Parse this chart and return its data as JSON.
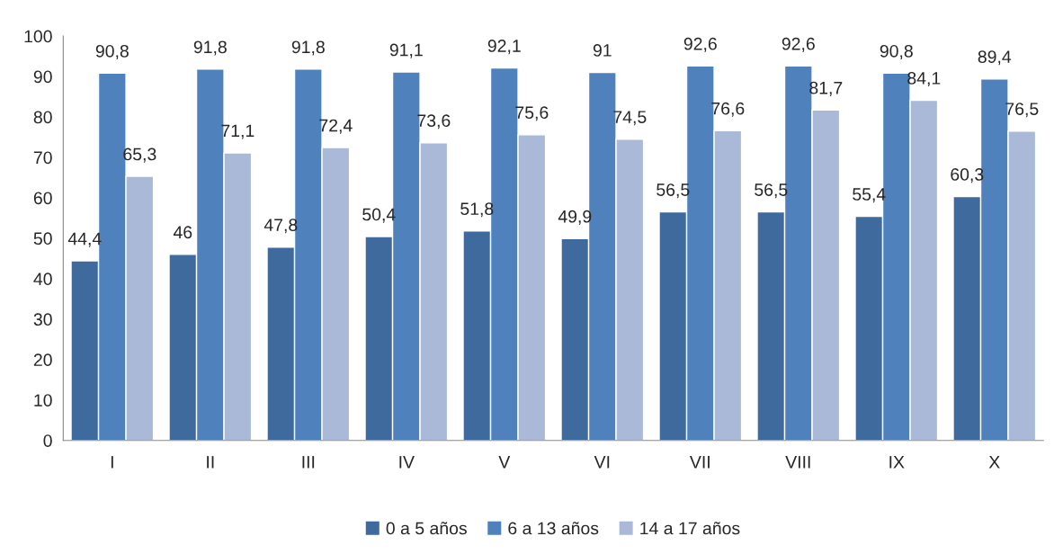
{
  "chart_data": {
    "type": "bar",
    "categories": [
      "I",
      "II",
      "III",
      "IV",
      "V",
      "VI",
      "VII",
      "VIII",
      "IX",
      "X"
    ],
    "series": [
      {
        "name": "0 a 5 años",
        "color": "#3f6a9e",
        "values": [
          44.4,
          46,
          47.8,
          50.4,
          51.8,
          49.9,
          56.5,
          56.5,
          55.4,
          60.3
        ],
        "value_labels": [
          "44,4",
          "46",
          "47,8",
          "50,4",
          "51,8",
          "49,9",
          "56,5",
          "56,5",
          "55,4",
          "60,3"
        ]
      },
      {
        "name": "6 a 13 años",
        "color": "#4f81bd",
        "values": [
          90.8,
          91.8,
          91.8,
          91.1,
          92.1,
          91,
          92.6,
          92.6,
          90.8,
          89.4
        ],
        "value_labels": [
          "90,8",
          "91,8",
          "91,8",
          "91,1",
          "92,1",
          "91",
          "92,6",
          "92,6",
          "90,8",
          "89,4"
        ]
      },
      {
        "name": "14 a 17 años",
        "color": "#aab9d8",
        "values": [
          65.3,
          71.1,
          72.4,
          73.6,
          75.6,
          74.5,
          76.6,
          81.7,
          84.1,
          76.5
        ],
        "value_labels": [
          "65,3",
          "71,1",
          "72,4",
          "73,6",
          "75,6",
          "74,5",
          "76,6",
          "81,7",
          "84,1",
          "76,5"
        ]
      }
    ],
    "ylim": [
      0,
      100
    ],
    "yticks": [
      0,
      10,
      20,
      30,
      40,
      50,
      60,
      70,
      80,
      90,
      100
    ],
    "grid": false,
    "legend": "bottom"
  }
}
